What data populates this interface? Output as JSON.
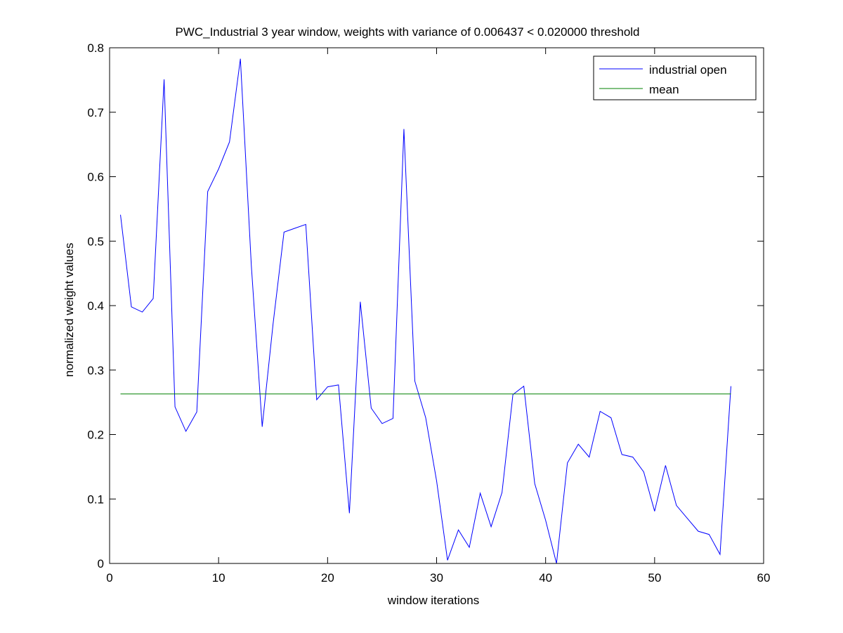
{
  "chart_data": {
    "type": "line",
    "title": "PWC_Industrial 3 year window, weights with variance of 0.006437 < 0.020000 threshold",
    "xlabel": "window iterations",
    "ylabel": "normalized weight values",
    "xlim": [
      0,
      60
    ],
    "ylim": [
      0,
      0.8
    ],
    "xticks": [
      "0",
      "10",
      "20",
      "30",
      "40",
      "50",
      "60"
    ],
    "yticks": [
      "0",
      "0.1",
      "0.2",
      "0.3",
      "0.4",
      "0.5",
      "0.6",
      "0.7",
      "0.8"
    ],
    "grid": false,
    "legend_position": "top-right",
    "series": [
      {
        "name": "industrial open",
        "color": "#0000ff",
        "x": [
          1,
          2,
          3,
          4,
          5,
          6,
          7,
          8,
          9,
          10,
          11,
          12,
          13,
          14,
          15,
          16,
          17,
          18,
          19,
          20,
          21,
          22,
          23,
          24,
          25,
          26,
          27,
          28,
          29,
          30,
          31,
          32,
          33,
          34,
          35,
          36,
          37,
          38,
          39,
          40,
          41,
          42,
          43,
          44,
          45,
          46,
          47,
          48,
          49,
          50,
          51,
          52,
          53,
          54,
          55,
          56,
          57
        ],
        "values": [
          0.541,
          0.398,
          0.39,
          0.411,
          0.751,
          0.243,
          0.205,
          0.235,
          0.577,
          0.612,
          0.654,
          0.783,
          0.463,
          0.212,
          0.372,
          0.514,
          0.52,
          0.526,
          0.254,
          0.274,
          0.277,
          0.078,
          0.406,
          0.241,
          0.217,
          0.225,
          0.674,
          0.283,
          0.226,
          0.128,
          0.005,
          0.052,
          0.025,
          0.109,
          0.057,
          0.11,
          0.262,
          0.275,
          0.124,
          0.067,
          0.0,
          0.156,
          0.185,
          0.165,
          0.236,
          0.226,
          0.169,
          0.165,
          0.142,
          0.081,
          0.152,
          0.09,
          0.07,
          0.05,
          0.045,
          0.014,
          0.275
        ]
      },
      {
        "name": "mean",
        "color": "#008000",
        "x": [
          1,
          57
        ],
        "values": [
          0.263,
          0.263
        ]
      }
    ]
  }
}
